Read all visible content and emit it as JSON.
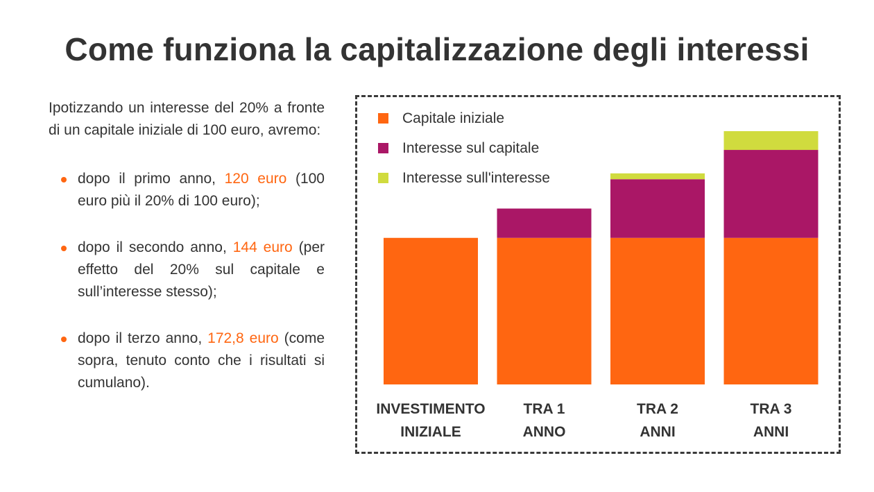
{
  "page": {
    "title": "Come funziona la capitalizzazione degli interessi",
    "intro": "Ipotizzando un interesse del 20% a fronte di un capitale iniziale di 100 euro, avremo:",
    "bullets": [
      {
        "prefix": "dopo il primo anno, ",
        "highlight": "120 euro",
        "suffix": " (100 euro più il 20% di 100 euro);"
      },
      {
        "prefix": "dopo il secondo anno, ",
        "highlight": "144 euro",
        "suffix": " (per effetto del 20% sul capitale e sull’interesse stesso);"
      },
      {
        "prefix": "dopo il terzo anno, ",
        "highlight": "172,8 euro",
        "suffix": " (come sopra, tenuto conto che i risultati si cumulano)."
      }
    ]
  },
  "colors": {
    "accent": "#ff6611",
    "text": "#333333",
    "capitale": "#ff6611",
    "interesse_capitale": "#aa1766",
    "interesse_interesse": "#d0db3e"
  },
  "chart_data": {
    "type": "bar",
    "stacked": true,
    "categories": [
      [
        "INVESTIMENTO",
        "INIZIALE"
      ],
      [
        "TRA 1",
        "ANNO"
      ],
      [
        "TRA 2",
        "ANNI"
      ],
      [
        "TRA 3",
        "ANNI"
      ]
    ],
    "series": [
      {
        "name": "Capitale iniziale",
        "color": "#ff6611",
        "values": [
          100,
          100,
          100,
          100
        ]
      },
      {
        "name": "Interesse sul capitale",
        "color": "#aa1766",
        "values": [
          0,
          20,
          40,
          60
        ]
      },
      {
        "name": "Interesse sull'interesse",
        "color": "#d0db3e",
        "values": [
          0,
          0,
          4,
          12.8
        ]
      }
    ],
    "ylim": [
      0,
      172.8
    ],
    "grid": false,
    "legend_position": "top-left",
    "axis_labels": "none"
  }
}
